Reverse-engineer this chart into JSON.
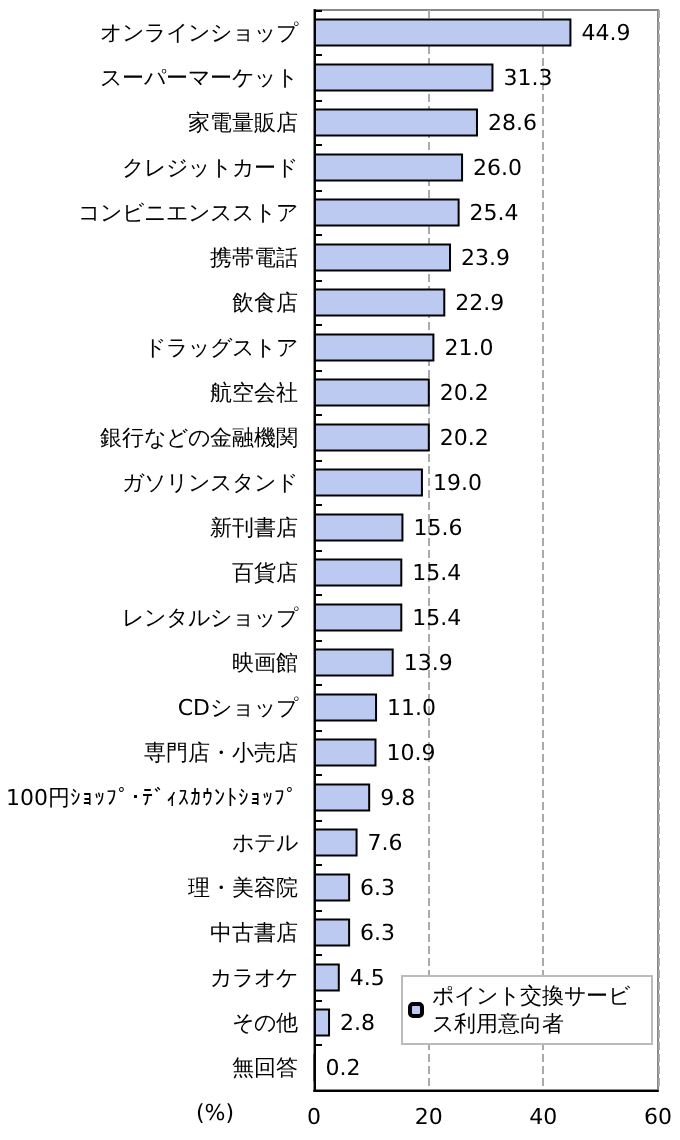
{
  "chart_data": {
    "type": "bar",
    "orientation": "horizontal",
    "xlabel": "(%)",
    "categories": [
      "オンラインショップ",
      "スーパーマーケット",
      "家電量販店",
      "クレジットカード",
      "コンビニエンスストア",
      "携帯電話",
      "飲食店",
      "ドラッグストア",
      "航空会社",
      "銀行などの金融機関",
      "ガソリンスタンド",
      "新刊書店",
      "百貨店",
      "レンタルショップ",
      "映画館",
      "CDショップ",
      "専門店・小売店",
      "100円ｼｮｯﾌﾟ･ﾃﾞｨｽｶｳﾝﾄｼｮｯﾌﾟ",
      "ホテル",
      "理・美容院",
      "中古書店",
      "カラオケ",
      "その他",
      "無回答"
    ],
    "series": [
      {
        "name": "ポイント交換サービス利用意向者",
        "color": "#bccaf2",
        "values": [
          44.9,
          31.3,
          28.6,
          26.0,
          25.4,
          23.9,
          22.9,
          21.0,
          20.2,
          20.2,
          19.0,
          15.6,
          15.4,
          15.4,
          13.9,
          11.0,
          10.9,
          9.8,
          7.6,
          6.3,
          6.3,
          4.5,
          2.8,
          0.2
        ]
      }
    ],
    "value_labels": [
      "44.9",
      "31.3",
      "28.6",
      "26.0",
      "25.4",
      "23.9",
      "22.9",
      "21.0",
      "20.2",
      "20.2",
      "19.0",
      "15.6",
      "15.4",
      "15.4",
      "13.9",
      "11.0",
      "10.9",
      "9.8",
      "7.6",
      "6.3",
      "6.3",
      "4.5",
      "2.8",
      "0.2"
    ],
    "xlim": [
      0,
      60
    ],
    "xticks": [
      0,
      20,
      40,
      60
    ],
    "grid": "x",
    "legend": "bottom right"
  }
}
